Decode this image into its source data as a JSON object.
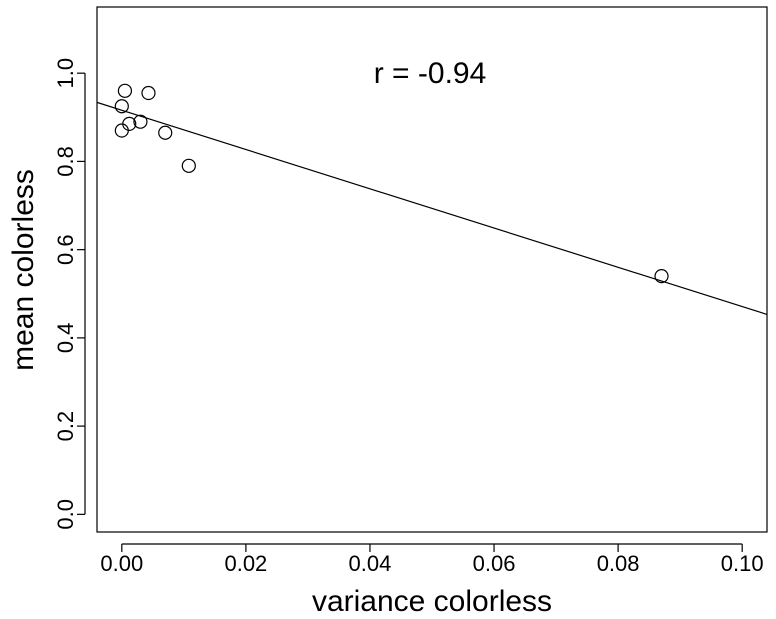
{
  "chart_data": {
    "type": "scatter",
    "title": "",
    "xlabel": "variance colorless",
    "ylabel": "mean colorless",
    "annotation": "r = -0.94",
    "xlim": [
      -0.004,
      0.104
    ],
    "ylim": [
      -0.04,
      1.15
    ],
    "x_ticks": [
      0.0,
      0.02,
      0.04,
      0.06,
      0.08,
      0.1
    ],
    "x_tick_labels": [
      "0.00",
      "0.02",
      "0.04",
      "0.06",
      "0.08",
      "0.10"
    ],
    "y_ticks": [
      0.0,
      0.2,
      0.4,
      0.6,
      0.8,
      1.0
    ],
    "y_tick_labels": [
      "0.0",
      "0.2",
      "0.4",
      "0.6",
      "0.8",
      "1.0"
    ],
    "grid": false,
    "points": [
      {
        "x": 0.0005,
        "y": 0.96
      },
      {
        "x": 0.0043,
        "y": 0.955
      },
      {
        "x": 0.0,
        "y": 0.925
      },
      {
        "x": 0.003,
        "y": 0.89
      },
      {
        "x": 0.0012,
        "y": 0.885
      },
      {
        "x": 0.0,
        "y": 0.87
      },
      {
        "x": 0.007,
        "y": 0.865
      },
      {
        "x": 0.0108,
        "y": 0.79
      },
      {
        "x": 0.087,
        "y": 0.54
      }
    ],
    "fit_line": {
      "intercept": 0.916,
      "slope": -4.45
    },
    "point_color": "#000000",
    "line_color": "#000000"
  }
}
